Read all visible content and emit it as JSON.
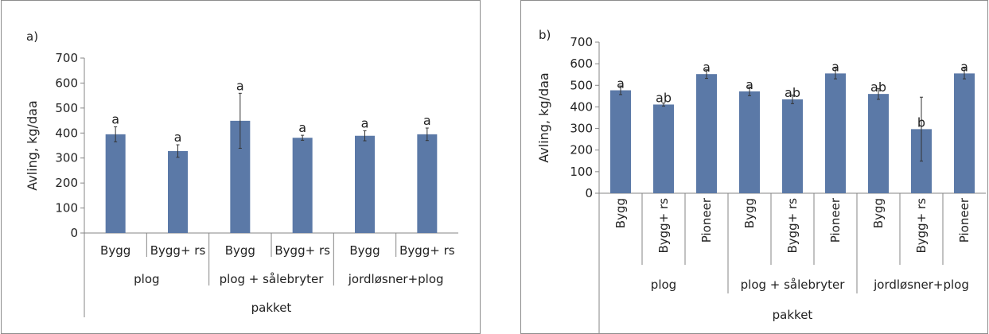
{
  "chart_data": [
    {
      "type": "bar",
      "panel_label": "a)",
      "ylabel": "Avling, kg/daa",
      "ylim": [
        0,
        700
      ],
      "yticks": [
        0,
        100,
        200,
        300,
        400,
        500,
        600,
        700
      ],
      "grid": false,
      "categories": [
        "Bygg",
        "Bygg+ rs",
        "Bygg",
        "Bygg+ rs",
        "Bygg",
        "Bygg+ rs"
      ],
      "groups": [
        {
          "label": "plog",
          "size": 2
        },
        {
          "label": "plog + sålebryter",
          "size": 2
        },
        {
          "label": "jordløsner+plog",
          "size": 2
        }
      ],
      "outer_label": "pakket",
      "values": [
        395,
        328,
        449,
        381,
        389,
        395
      ],
      "errors": [
        30,
        25,
        110,
        10,
        20,
        25
      ],
      "letters": [
        "a",
        "a",
        "a",
        "a",
        "a",
        "a"
      ],
      "bar_color": "#5b79a7"
    },
    {
      "type": "bar",
      "panel_label": "b)",
      "ylabel": "Avling, kg/daa",
      "ylim": [
        0,
        700
      ],
      "yticks": [
        0,
        100,
        200,
        300,
        400,
        500,
        600,
        700
      ],
      "grid": false,
      "categories": [
        "Bygg",
        "Bygg+ rs",
        "Pioneer",
        "Bygg",
        "Bygg+ rs",
        "Pioneer",
        "Bygg",
        "Bygg+ rs",
        "Pioneer"
      ],
      "groups": [
        {
          "label": "plog",
          "size": 3
        },
        {
          "label": "plog + sålebryter",
          "size": 3
        },
        {
          "label": "jordløsner+plog",
          "size": 3
        }
      ],
      "outer_label": "pakket",
      "values": [
        477,
        411,
        552,
        472,
        435,
        555,
        460,
        297,
        555
      ],
      "errors": [
        20,
        7,
        20,
        20,
        20,
        25,
        25,
        148,
        25
      ],
      "letters": [
        "a",
        "ab",
        "a",
        "a",
        "ab",
        "a",
        "ab",
        "b",
        "a"
      ],
      "bar_color": "#5b79a7"
    }
  ]
}
